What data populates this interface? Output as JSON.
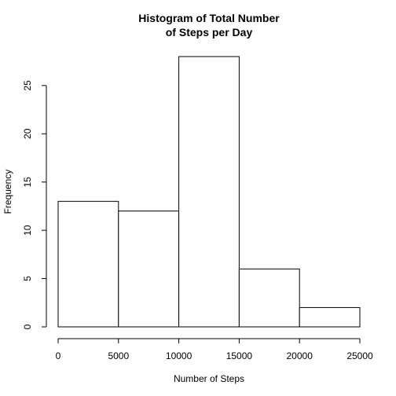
{
  "chart_data": {
    "type": "bar",
    "title_lines": [
      "Histogram of Total Number",
      "of Steps per Day"
    ],
    "xlabel": "Number of Steps",
    "ylabel": "Frequency",
    "bins": [
      {
        "from": 0,
        "to": 5000,
        "count": 13
      },
      {
        "from": 5000,
        "to": 10000,
        "count": 12
      },
      {
        "from": 10000,
        "to": 15000,
        "count": 28
      },
      {
        "from": 15000,
        "to": 20000,
        "count": 6
      },
      {
        "from": 20000,
        "to": 25000,
        "count": 2
      }
    ],
    "xticks": [
      0,
      5000,
      10000,
      15000,
      20000,
      25000
    ],
    "yticks": [
      0,
      5,
      10,
      15,
      20,
      25
    ],
    "xlim": [
      0,
      25000
    ],
    "ylim": [
      0,
      28
    ],
    "grid": false,
    "legend": "none",
    "colors": {
      "bar_fill": "#ffffff",
      "bar_stroke": "#000000"
    }
  }
}
